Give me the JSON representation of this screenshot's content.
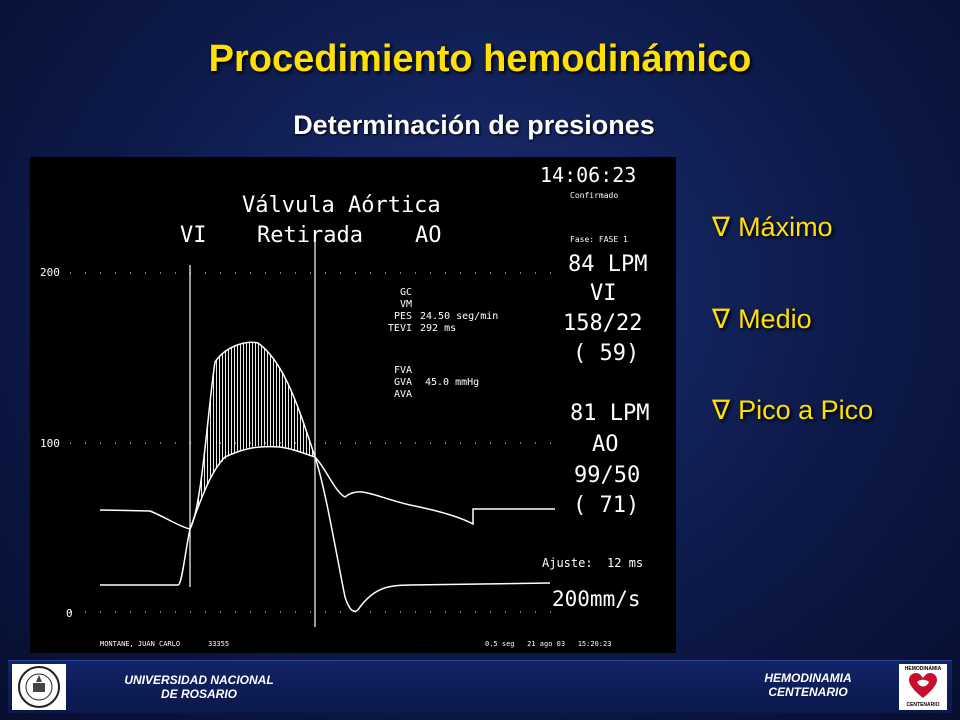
{
  "title": "Procedimiento hemodinámico",
  "subtitle": "Determinación de presiones",
  "monitor": {
    "time": "14:06:23",
    "confirmado": "Confirmado",
    "header_line1": "Válvula Aórtica",
    "header_vi": "VI",
    "header_retirada": "Retirada",
    "header_ao": "AO",
    "scale_200": "200",
    "scale_100": "100",
    "scale_0": "0",
    "params_labels": "GC\nVM\nPES\nTEVI",
    "params_values": "\n\n24.50 seg/min\n292 ms",
    "params2_labels": "FVA\nGVA\nAVA",
    "params2_values": "\n45.0 mmHg\n",
    "fase": "Fase: FASE 1",
    "vi_lpm": "84 LPM",
    "vi_label": "VI",
    "vi_pressure": "158/22",
    "vi_mean": "( 59)",
    "ao_lpm": "81 LPM",
    "ao_label": "AO",
    "ao_pressure": "99/50",
    "ao_mean": "( 71)",
    "ajuste": "Ajuste:  12 ms",
    "speed": "200mm/s",
    "bottom_name": "MONTANE, JUAN CARLO",
    "bottom_id": "33355",
    "bottom_right": "0.5 seg   21 ago 03   15:20:23"
  },
  "legend": {
    "symbol": "∇",
    "items": [
      "Máximo",
      "Medio",
      "Pico a Pico"
    ]
  },
  "footer": {
    "left_line1": "UNIVERSIDAD NACIONAL",
    "left_line2": "DE ROSARIO",
    "right_line1": "HEMODINAMIA",
    "right_line2": "CENTENARIO",
    "logo_right_top": "HEMODINAMIA",
    "logo_right_bottom": "CENTENARIO"
  }
}
